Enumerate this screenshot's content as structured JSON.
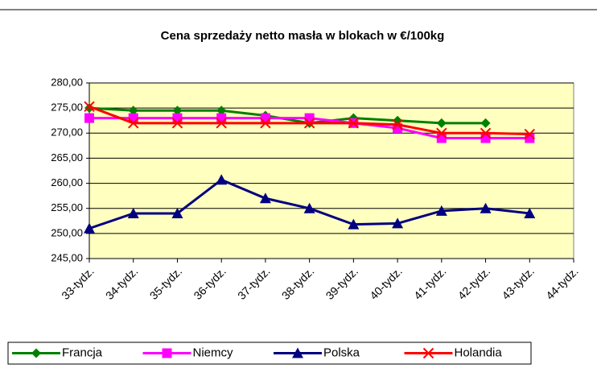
{
  "chart_data": {
    "type": "line",
    "title": "Cena sprzedaży netto masła w blokach w €/100kg",
    "categories": [
      "33-tydz.",
      "34-tydz.",
      "35-tydz.",
      "36-tydz.",
      "37-tydz.",
      "38-tydz.",
      "39-tydz.",
      "40-tydz.",
      "41-tydz.",
      "42-tydz.",
      "43-tydz.",
      "44-tydz."
    ],
    "series": [
      {
        "name": "Francja",
        "color": "#008000",
        "marker": "diamond",
        "values": [
          275,
          274.5,
          274.5,
          274.5,
          273.5,
          272,
          273,
          272.5,
          272,
          272,
          null,
          null
        ]
      },
      {
        "name": "Niemcy",
        "color": "#ff00ff",
        "marker": "square",
        "values": [
          273,
          273,
          273,
          273,
          273,
          273,
          272,
          271,
          269,
          269,
          269,
          null
        ]
      },
      {
        "name": "Polska",
        "color": "#000080",
        "marker": "triangle",
        "values": [
          251,
          254,
          254,
          260.7,
          257,
          255,
          251.8,
          252,
          254.5,
          255,
          254,
          null
        ]
      },
      {
        "name": "Holandia",
        "color": "#ff0000",
        "marker": "x",
        "values": [
          275.3,
          272,
          272,
          272,
          272,
          272,
          272,
          271.7,
          270,
          270,
          269.8,
          null
        ]
      }
    ],
    "ylim": [
      245,
      280
    ],
    "yticks": [
      {
        "value": 245,
        "label": "245,00"
      },
      {
        "value": 250,
        "label": "250,00"
      },
      {
        "value": 255,
        "label": "255,00"
      },
      {
        "value": 260,
        "label": "260,00"
      },
      {
        "value": 265,
        "label": "265,00"
      },
      {
        "value": 270,
        "label": "270,00"
      },
      {
        "value": 275,
        "label": "275,00"
      },
      {
        "value": 280,
        "label": "280,00"
      }
    ],
    "grid": true,
    "legend": "bottom",
    "background": "#ffffc0"
  }
}
